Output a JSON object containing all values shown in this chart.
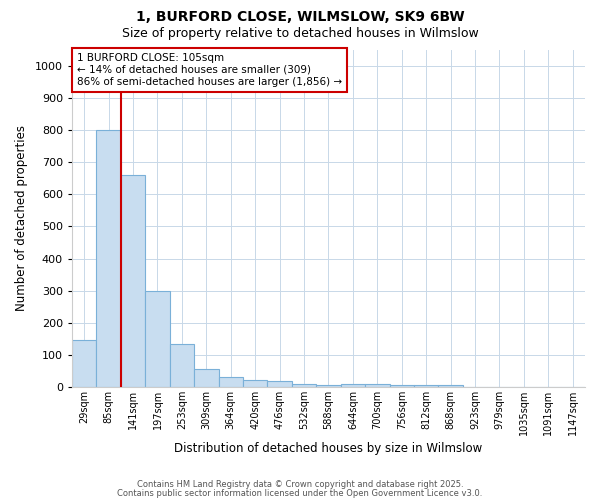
{
  "title1": "1, BURFORD CLOSE, WILMSLOW, SK9 6BW",
  "title2": "Size of property relative to detached houses in Wilmslow",
  "xlabel": "Distribution of detached houses by size in Wilmslow",
  "ylabel": "Number of detached properties",
  "annotation_title": "1 BURFORD CLOSE: 105sqm",
  "annotation_line1": "← 14% of detached houses are smaller (309)",
  "annotation_line2": "86% of semi-detached houses are larger (1,856) →",
  "bin_labels": [
    "29sqm",
    "85sqm",
    "141sqm",
    "197sqm",
    "253sqm",
    "309sqm",
    "364sqm",
    "420sqm",
    "476sqm",
    "532sqm",
    "588sqm",
    "644sqm",
    "700sqm",
    "756sqm",
    "812sqm",
    "868sqm",
    "923sqm",
    "979sqm",
    "1035sqm",
    "1091sqm",
    "1147sqm"
  ],
  "bin_values": [
    145,
    800,
    660,
    300,
    135,
    55,
    30,
    20,
    18,
    10,
    5,
    8,
    8,
    7,
    5,
    5,
    0,
    0,
    0,
    0,
    0
  ],
  "bar_color": "#c8ddf0",
  "bar_edge_color": "#7ab0d8",
  "ylim": [
    0,
    1050
  ],
  "yticks": [
    0,
    100,
    200,
    300,
    400,
    500,
    600,
    700,
    800,
    900,
    1000
  ],
  "red_line_x": 1.0,
  "red_line_color": "#cc0000",
  "annotation_box_color": "#ffffff",
  "annotation_box_edge": "#cc0000",
  "grid_color": "#c8d8e8",
  "bg_color": "#ffffff",
  "footer1": "Contains HM Land Registry data © Crown copyright and database right 2025.",
  "footer2": "Contains public sector information licensed under the Open Government Licence v3.0."
}
